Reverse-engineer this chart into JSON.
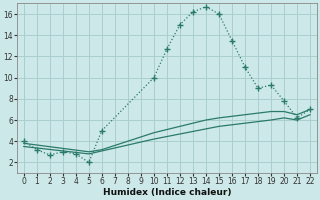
{
  "xlabel": "Humidex (Indice chaleur)",
  "background_color": "#cce8e8",
  "grid_color": "#aacece",
  "line_color": "#2a7a6a",
  "xlim": [
    -0.5,
    22.5
  ],
  "ylim": [
    1.0,
    17.0
  ],
  "xticks": [
    0,
    1,
    2,
    3,
    4,
    5,
    6,
    7,
    8,
    9,
    10,
    11,
    12,
    13,
    14,
    15,
    16,
    17,
    18,
    19,
    20,
    21,
    22
  ],
  "yticks": [
    2,
    4,
    6,
    8,
    10,
    12,
    14,
    16
  ],
  "curve_main_x": [
    0,
    1,
    2,
    3,
    4,
    5,
    6,
    10,
    11,
    12,
    13,
    14,
    15,
    16,
    17,
    18,
    19,
    20,
    21,
    22
  ],
  "curve_main_y": [
    4.0,
    3.2,
    2.7,
    3.0,
    2.8,
    2.0,
    5.0,
    10.0,
    12.7,
    15.0,
    16.2,
    16.7,
    16.0,
    13.5,
    11.0,
    9.0,
    9.3,
    7.8,
    6.2,
    7.0
  ],
  "curve_upper_x": [
    0,
    5,
    6,
    10,
    14,
    15,
    19,
    20,
    21,
    22
  ],
  "curve_upper_y": [
    3.8,
    3.0,
    3.2,
    4.8,
    6.0,
    6.2,
    6.8,
    6.8,
    6.5,
    7.0
  ],
  "curve_lower_x": [
    0,
    5,
    10,
    15,
    19,
    20,
    21,
    22
  ],
  "curve_lower_y": [
    3.5,
    2.8,
    4.2,
    5.4,
    6.0,
    6.2,
    6.0,
    6.5
  ]
}
